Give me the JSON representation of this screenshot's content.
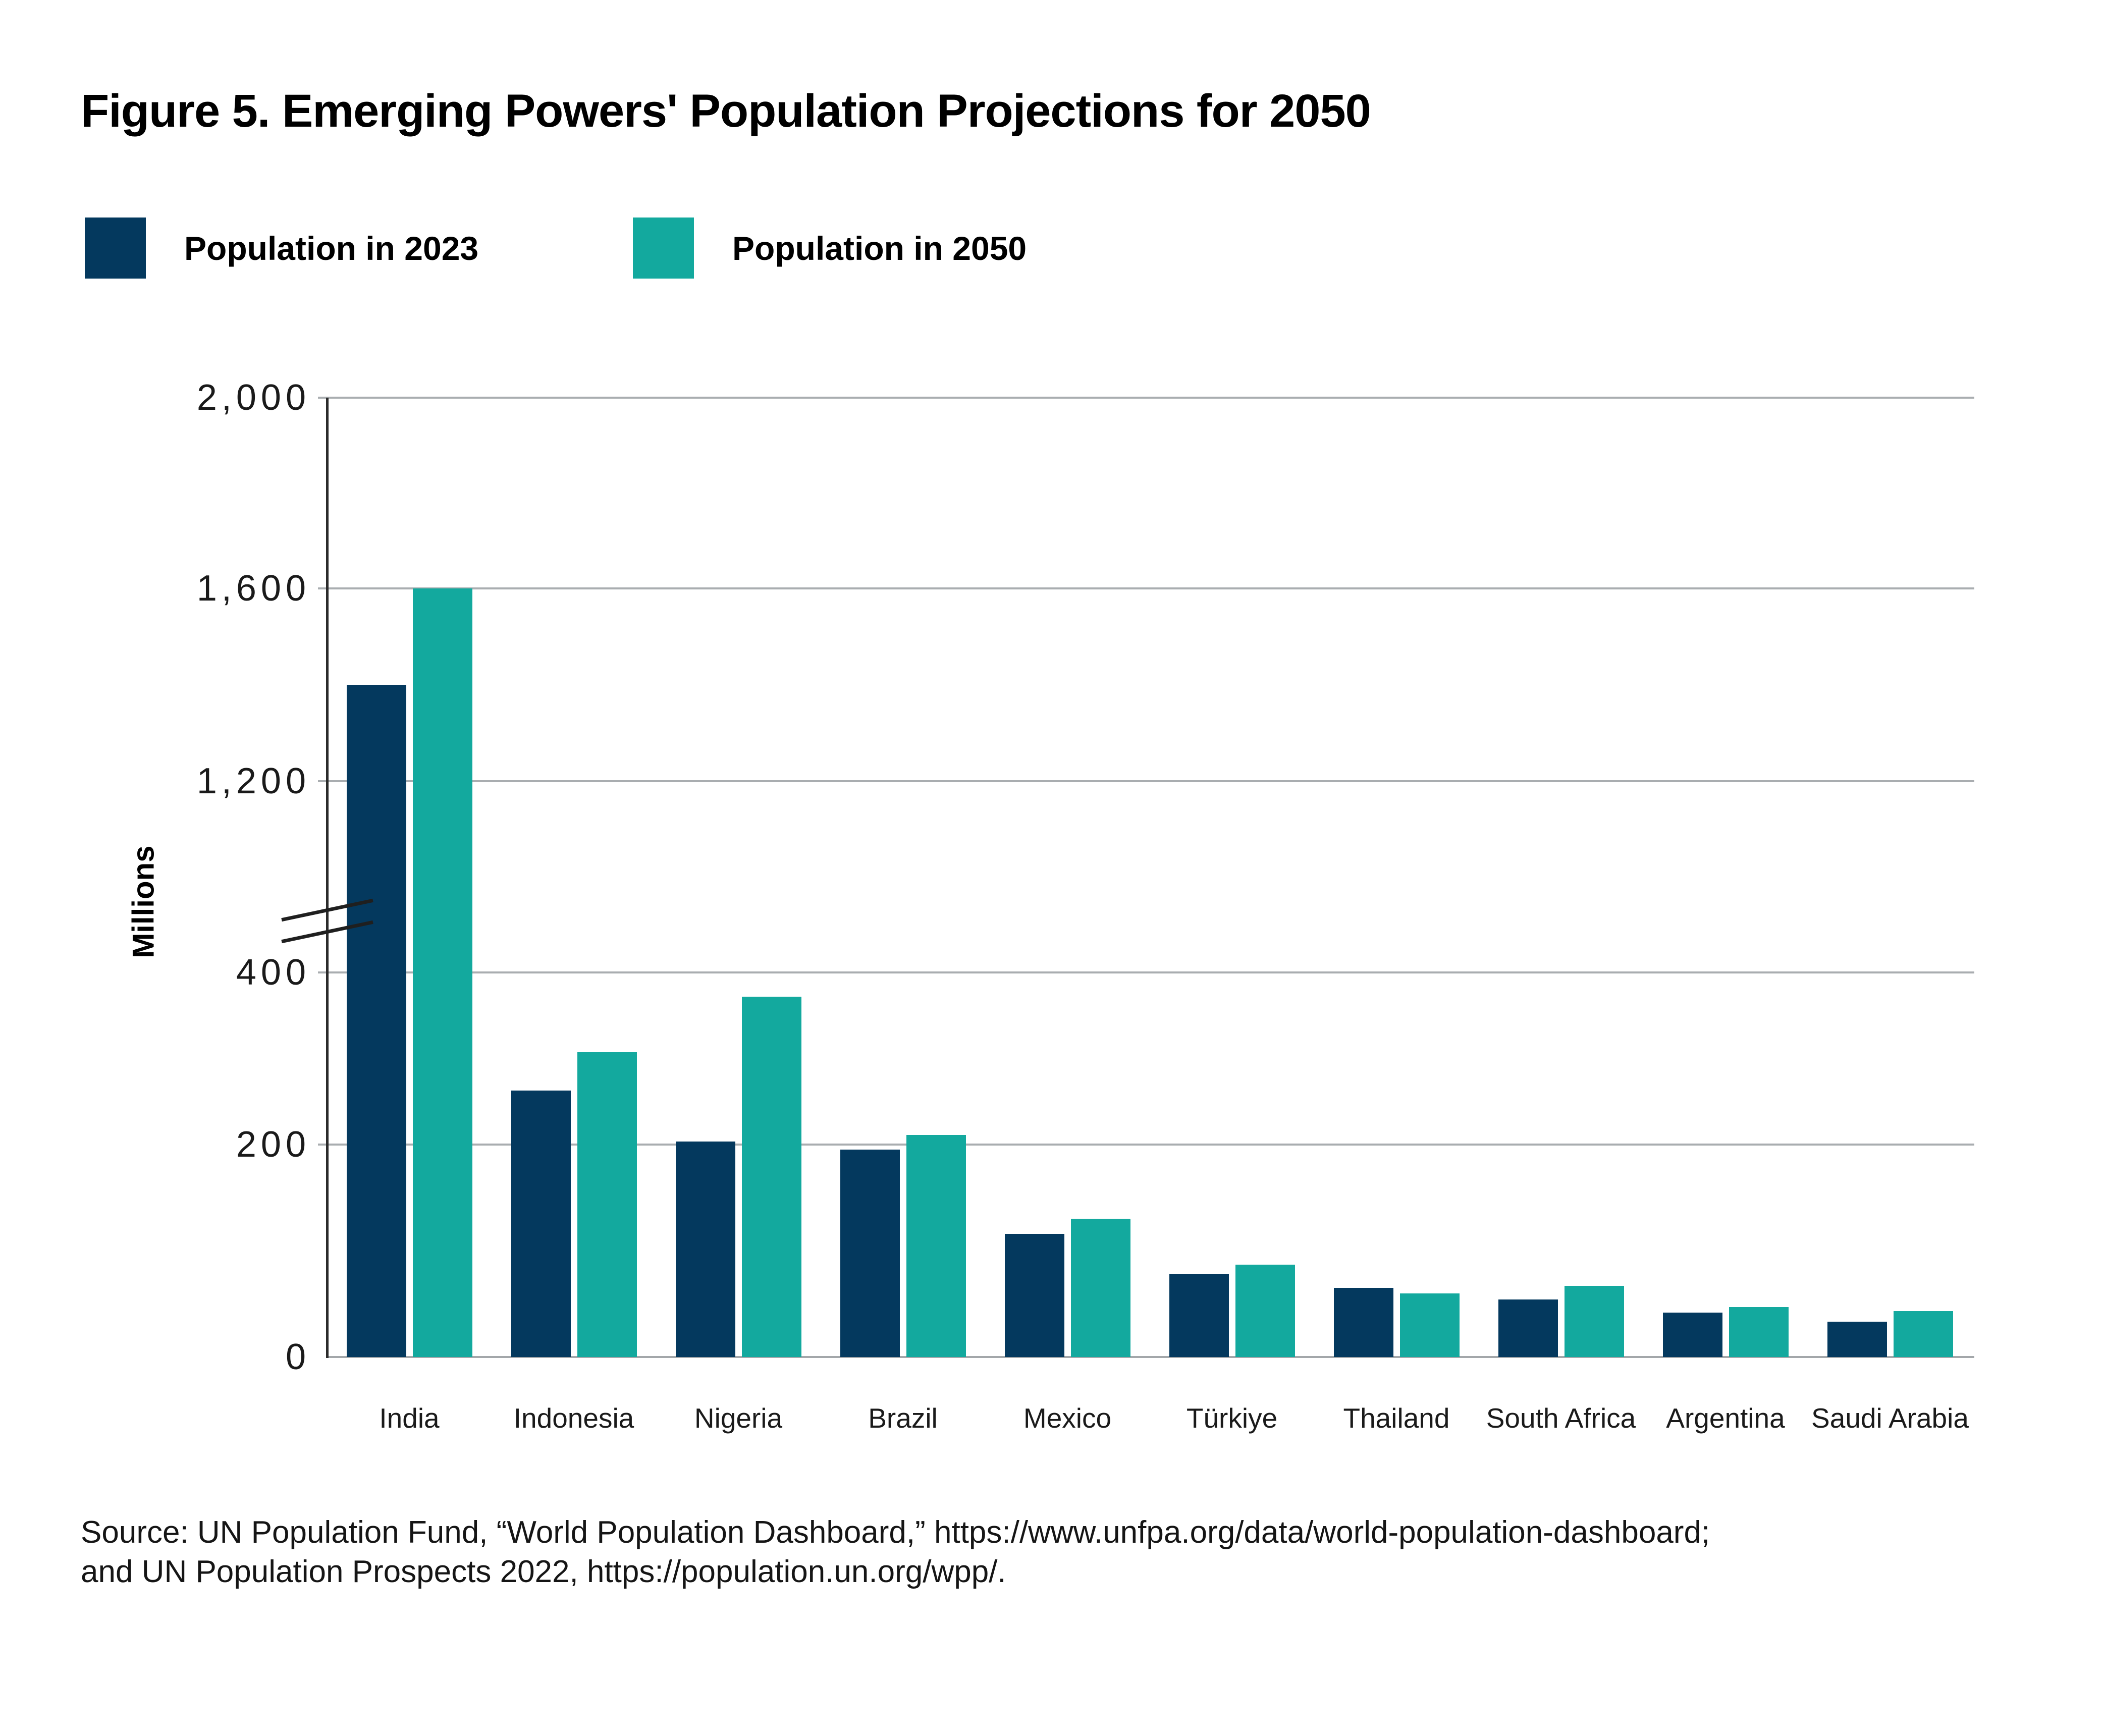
{
  "title": "Figure 5. Emerging Powers' Population Projections for 2050",
  "chart_data": {
    "type": "bar",
    "title": "Figure 5. Emerging Powers' Population Projections for 2050",
    "categories": [
      "India",
      "Indonesia",
      "Nigeria",
      "Brazil",
      "Mexico",
      "Türkiye",
      "Thailand",
      "South Africa",
      "Argentina",
      "Saudi Arabia"
    ],
    "series": [
      {
        "name": "Population in 2023",
        "color": "#04395E",
        "values": [
          1400,
          277,
          224,
          216,
          128,
          86,
          72,
          60,
          46,
          37
        ]
      },
      {
        "name": "Population in 2050",
        "color": "#13A99E",
        "values": [
          1600,
          317,
          375,
          231,
          144,
          96,
          66,
          74,
          52,
          48
        ]
      }
    ],
    "xlabel": "",
    "ylabel": "Millions",
    "ylim": [
      0,
      2000
    ],
    "y_ticks": [
      {
        "label": "0",
        "value": 0
      },
      {
        "label": "200",
        "value": 200
      },
      {
        "label": "400",
        "value": 400
      },
      {
        "label": "1,200",
        "value": 1200
      },
      {
        "label": "1,600",
        "value": 1600
      },
      {
        "label": "2,000",
        "value": 2000
      }
    ],
    "axis_break": {
      "between": [
        400,
        1200
      ]
    },
    "grid": "horizontal",
    "legend_position": "top-left"
  },
  "source": {
    "line1": "Source: UN Population Fund, “World Population Dashboard,” https://www.unfpa.org/data/world-population-dashboard;",
    "line2": "and UN Population Prospects 2022,  https://population.un.org/wpp/."
  }
}
